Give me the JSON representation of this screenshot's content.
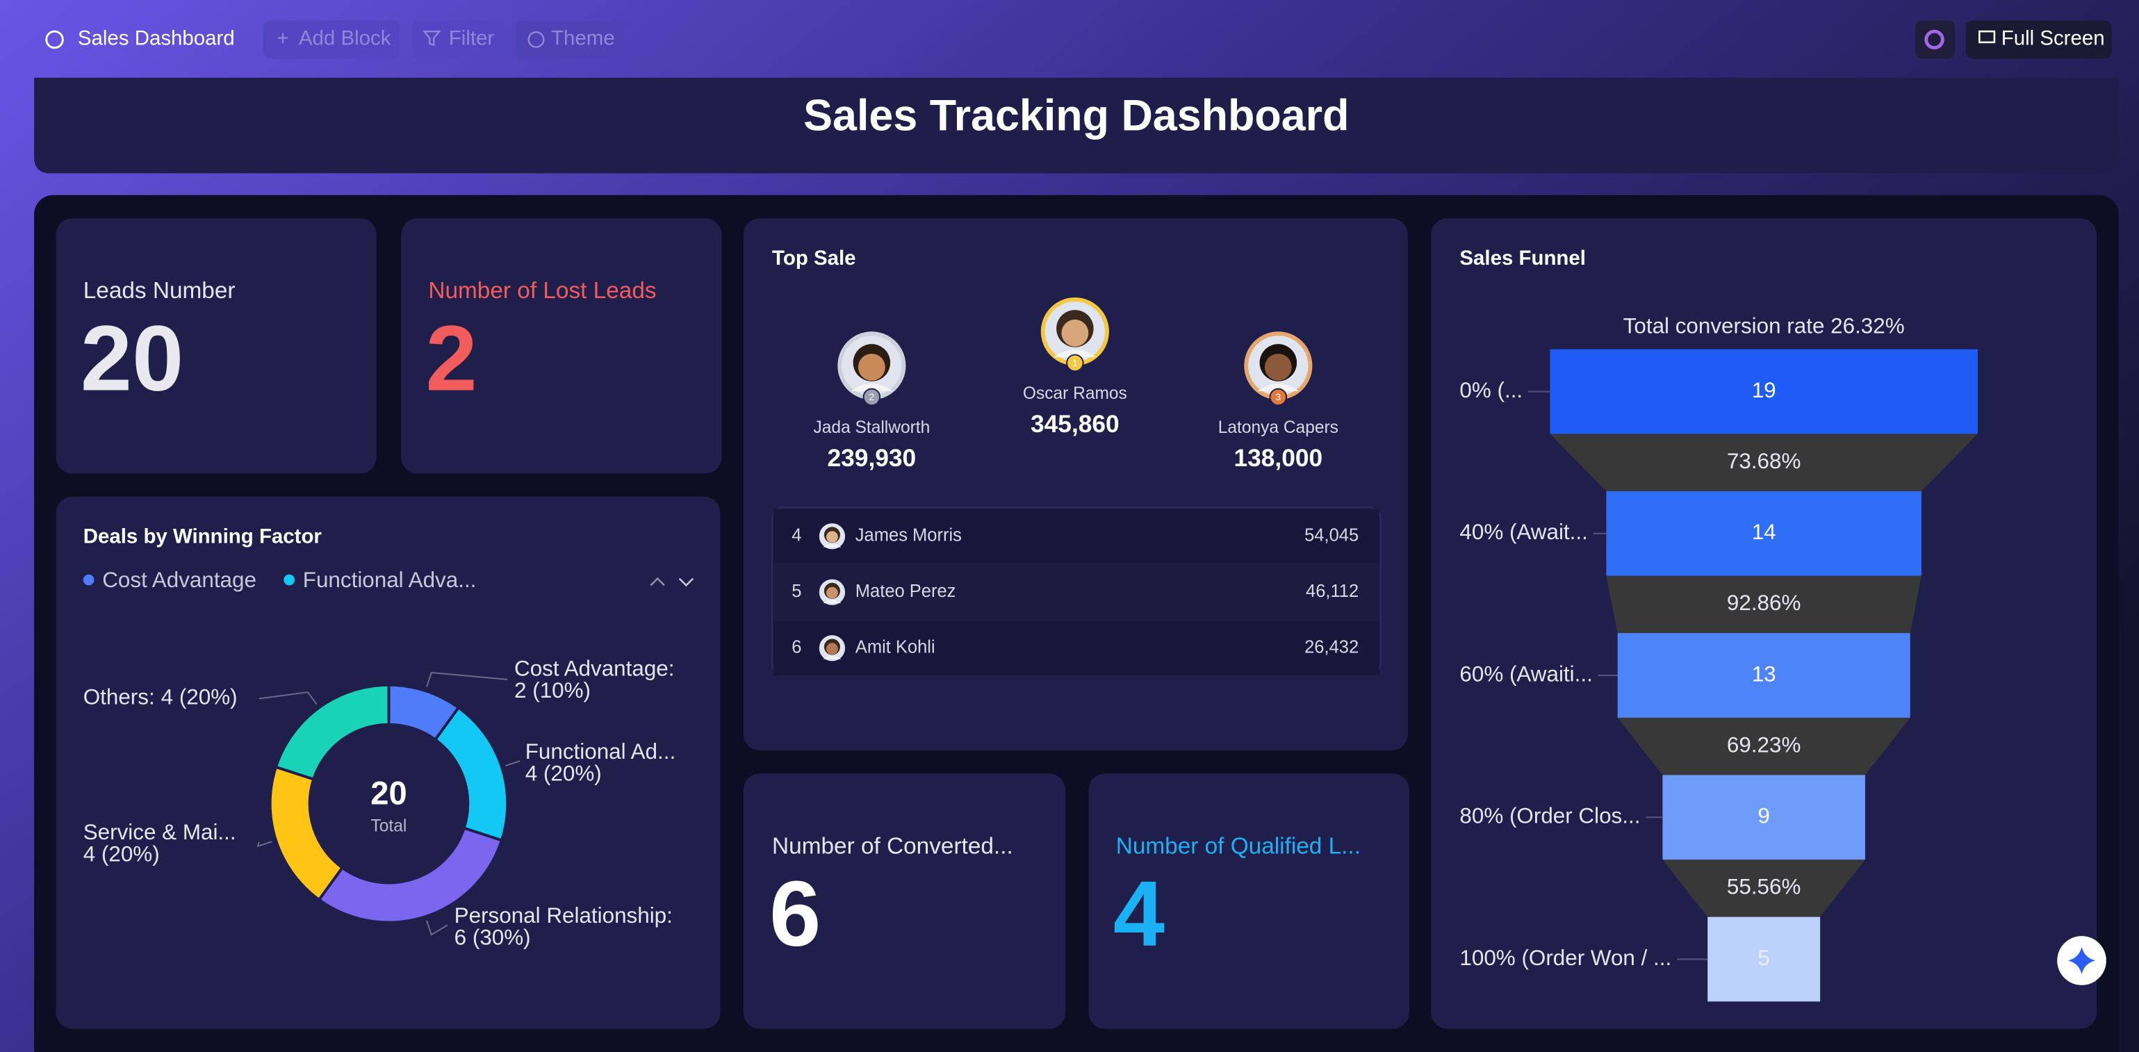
{
  "toolbar": {
    "title": "Sales Dashboard",
    "buttons": [
      "Add Block",
      "Filter",
      "Theme"
    ],
    "fullscreen": "Full Screen"
  },
  "header": {
    "title": "Sales Tracking Dashboard"
  },
  "kpis": [
    {
      "label": "Leads Number",
      "value": 20
    },
    {
      "label": "Number of Lost Leads",
      "value": 2
    },
    {
      "label": "Number of Converted...",
      "value": 6
    },
    {
      "label": "Number of Qualified L...",
      "value": 4
    }
  ],
  "top_sale": {
    "title": "Top Sale",
    "podium": [
      {
        "rank": 2,
        "name": "Jada Stallworth",
        "amount": "239,930"
      },
      {
        "rank": 1,
        "name": "Oscar Ramos",
        "amount": "345,860"
      },
      {
        "rank": 3,
        "name": "Latonya Capers",
        "amount": "138,000"
      }
    ],
    "list": [
      {
        "rank": 4,
        "name": "James Morris",
        "amount": "54,045"
      },
      {
        "rank": 5,
        "name": "Mateo Perez",
        "amount": "46,112"
      },
      {
        "rank": 6,
        "name": "Amit Kohli",
        "amount": "26,432"
      }
    ]
  },
  "chart_data": [
    {
      "type": "donut",
      "title": "Deals by Winning Factor",
      "legend": [
        "Cost Advantage",
        "Functional Adva..."
      ],
      "categories": [
        "Cost Advantage:",
        "Functional Ad...",
        "Personal Relationship:",
        "Service & Mai...",
        "Others:"
      ],
      "values": [
        2,
        4,
        6,
        4,
        4
      ],
      "value_labels": [
        "2 (10%)",
        "4 (20%)",
        "6 (30%)",
        "4 (20%)",
        "4 (20%)"
      ],
      "colors": [
        "#4f7df9",
        "#14c8f5",
        "#7c66f0",
        "#ffc414",
        "#19d3b8"
      ],
      "center_value": 20,
      "center_label": "Total"
    },
    {
      "type": "funnel",
      "title": "Sales Funnel",
      "subtitle": "Total conversion rate 26.32%",
      "categories": [
        "0% (...",
        "40% (Await...",
        "60% (Awaiti...",
        "80% (Order Clos...",
        "100% (Order Won / ..."
      ],
      "values": [
        19,
        14,
        13,
        9,
        5
      ],
      "colors": [
        "#1f5cf5",
        "#2f6ef7",
        "#4d84f8",
        "#6f9cfa",
        "#bcd2fc"
      ],
      "conversion_rates": [
        73.68,
        92.86,
        69.23,
        55.56
      ],
      "conversion_labels": [
        "73.68%",
        "92.86%",
        "69.23%",
        "55.56%"
      ]
    }
  ]
}
